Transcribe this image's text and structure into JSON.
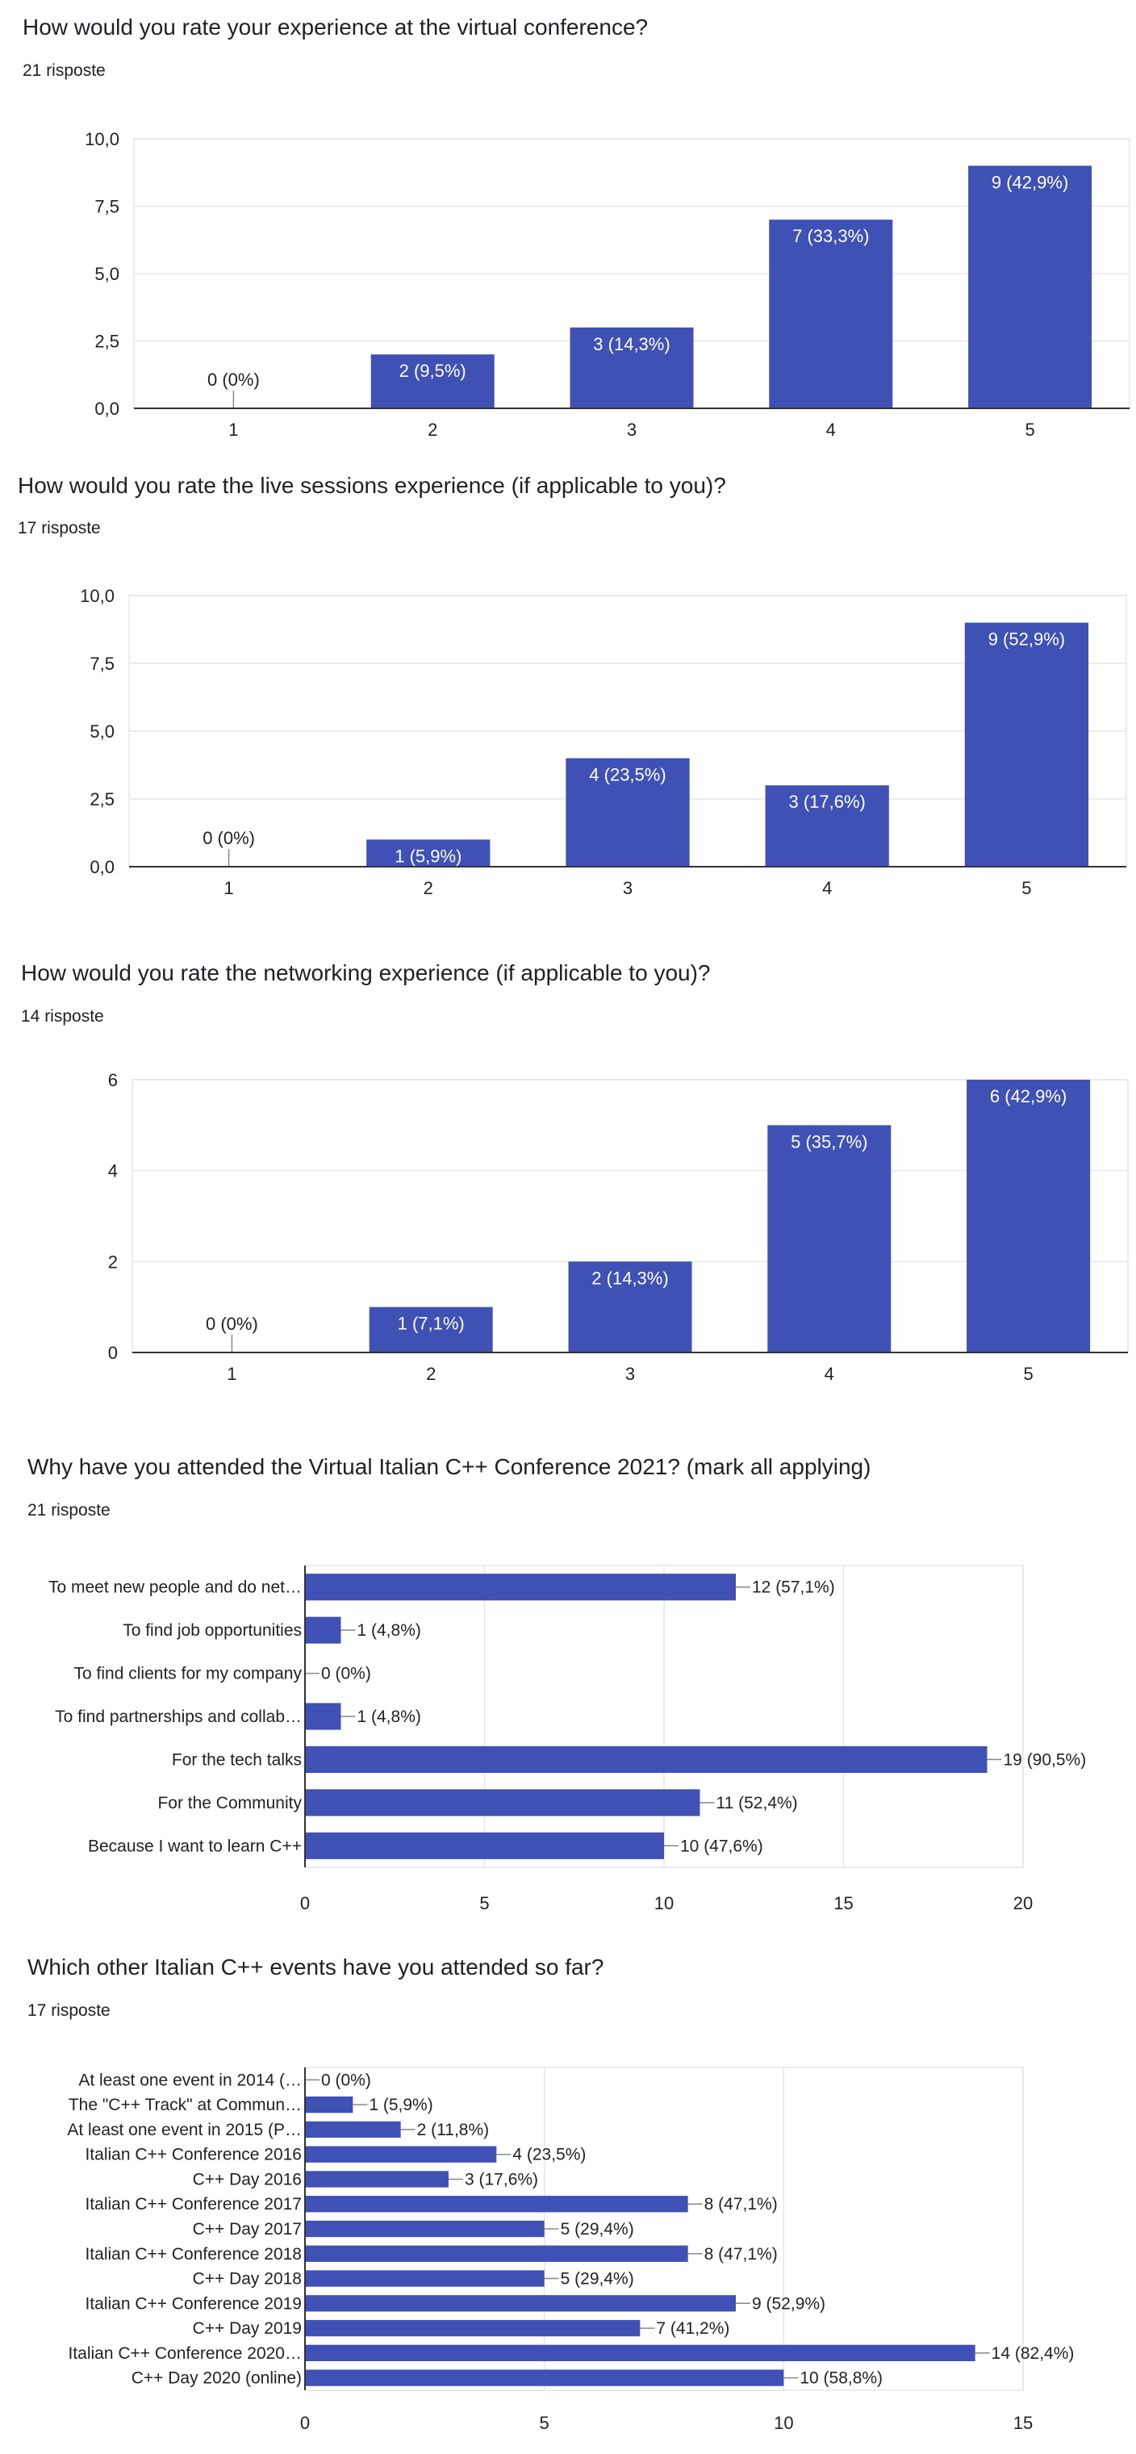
{
  "colors": {
    "bar": "#3f51b5",
    "grid": "#e6e6e6",
    "axis": "#333333",
    "text": "#222222",
    "bar_label": "#ffffff"
  },
  "sections": [
    {
      "title": "How would you rate your experience at the virtual conference?",
      "responses": "21 risposte",
      "chart_data": {
        "type": "bar",
        "orientation": "vertical",
        "categories": [
          "1",
          "2",
          "3",
          "4",
          "5"
        ],
        "values": [
          0,
          2,
          3,
          7,
          9
        ],
        "labels": [
          "0 (0%)",
          "2 (9,5%)",
          "3 (14,3%)",
          "7 (33,3%)",
          "9 (42,9%)"
        ],
        "yticks": [
          "0,0",
          "2,5",
          "5,0",
          "7,5",
          "10,0"
        ],
        "ylim": [
          0,
          10
        ],
        "grid": true
      }
    },
    {
      "title": "How would you rate the live sessions experience (if applicable to you)?",
      "responses": "17 risposte",
      "chart_data": {
        "type": "bar",
        "orientation": "vertical",
        "categories": [
          "1",
          "2",
          "3",
          "4",
          "5"
        ],
        "values": [
          0,
          1,
          4,
          3,
          9
        ],
        "labels": [
          "0 (0%)",
          "1 (5,9%)",
          "4 (23,5%)",
          "3 (17,6%)",
          "9 (52,9%)"
        ],
        "yticks": [
          "0,0",
          "2,5",
          "5,0",
          "7,5",
          "10,0"
        ],
        "ylim": [
          0,
          10
        ],
        "grid": true
      }
    },
    {
      "title": "How would you rate the networking experience (if applicable to you)?",
      "responses": "14 risposte",
      "chart_data": {
        "type": "bar",
        "orientation": "vertical",
        "categories": [
          "1",
          "2",
          "3",
          "4",
          "5"
        ],
        "values": [
          0,
          1,
          2,
          5,
          6
        ],
        "labels": [
          "0 (0%)",
          "1 (7,1%)",
          "2 (14,3%)",
          "5 (35,7%)",
          "6 (42,9%)"
        ],
        "yticks": [
          "0",
          "2",
          "4",
          "6"
        ],
        "ylim": [
          0,
          6
        ],
        "grid": true
      }
    },
    {
      "title": "Why have you attended the Virtual Italian C++ Conference 2021? (mark all applying)",
      "responses": "21 risposte",
      "chart_data": {
        "type": "bar",
        "orientation": "horizontal",
        "categories": [
          "To meet new people and do net…",
          "To find job opportunities",
          "To find clients for my company",
          "To find partnerships and collab…",
          "For the tech talks",
          "For the Community",
          "Because I want to learn C++"
        ],
        "values": [
          12,
          1,
          0,
          1,
          19,
          11,
          10
        ],
        "labels": [
          "12 (57,1%)",
          "1 (4,8%)",
          "0 (0%)",
          "1 (4,8%)",
          "19 (90,5%)",
          "11 (52,4%)",
          "10 (47,6%)"
        ],
        "xticks": [
          "0",
          "5",
          "10",
          "15",
          "20"
        ],
        "xlim": [
          0,
          20
        ],
        "grid": true
      }
    },
    {
      "title": "Which other Italian C++ events have you attended so far?",
      "responses": "17 risposte",
      "chart_data": {
        "type": "bar",
        "orientation": "horizontal",
        "categories": [
          "At least one event in 2014 (…",
          "The \"C++ Track\" at Commun…",
          "At least one event in 2015 (P…",
          "Italian C++ Conference 2016",
          "C++ Day 2016",
          "Italian C++ Conference 2017",
          "C++ Day 2017",
          "Italian C++ Conference 2018",
          "C++ Day 2018",
          "Italian C++ Conference 2019",
          "C++ Day 2019",
          "Italian C++ Conference 2020…",
          "C++ Day 2020 (online)"
        ],
        "values": [
          0,
          1,
          2,
          4,
          3,
          8,
          5,
          8,
          5,
          9,
          7,
          14,
          10
        ],
        "labels": [
          "0 (0%)",
          "1 (5,9%)",
          "2 (11,8%)",
          "4 (23,5%)",
          "3 (17,6%)",
          "8 (47,1%)",
          "5 (29,4%)",
          "8 (47,1%)",
          "5 (29,4%)",
          "9 (52,9%)",
          "7 (41,2%)",
          "14 (82,4%)",
          "10 (58,8%)"
        ],
        "xticks": [
          "0",
          "5",
          "10",
          "15"
        ],
        "xlim": [
          0,
          15
        ],
        "grid": true
      }
    }
  ]
}
